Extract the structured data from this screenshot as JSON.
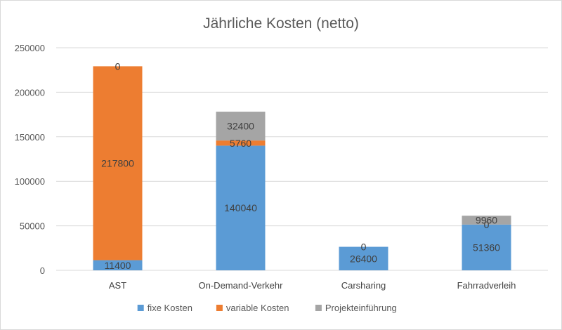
{
  "chart_data": {
    "type": "bar",
    "stacked": true,
    "title": "Jährliche Kosten (netto)",
    "xlabel": "",
    "ylabel": "",
    "ylim": [
      0,
      250000
    ],
    "ytick_step": 50000,
    "yticks": [
      "0",
      "50000",
      "100000",
      "150000",
      "200000",
      "250000"
    ],
    "grid": true,
    "legend_position": "bottom",
    "categories": [
      "AST",
      "On-Demand-Verkehr",
      "Carsharing",
      "Fahrradverleih"
    ],
    "series": [
      {
        "name": "fixe Kosten",
        "color": "#5b9bd5",
        "values": [
          11400,
          140040,
          26400,
          51360
        ]
      },
      {
        "name": "variable Kosten",
        "color": "#ed7d31",
        "values": [
          217800,
          5760,
          0,
          0
        ]
      },
      {
        "name": "Projekteinführung",
        "color": "#a5a5a5",
        "values": [
          0,
          32400,
          0,
          9960
        ]
      }
    ],
    "data_labels": [
      [
        "11400",
        "140040",
        "26400",
        "51360"
      ],
      [
        "217800",
        "5760",
        "0",
        "0"
      ],
      [
        "0",
        "32400",
        "",
        "9960"
      ]
    ]
  }
}
